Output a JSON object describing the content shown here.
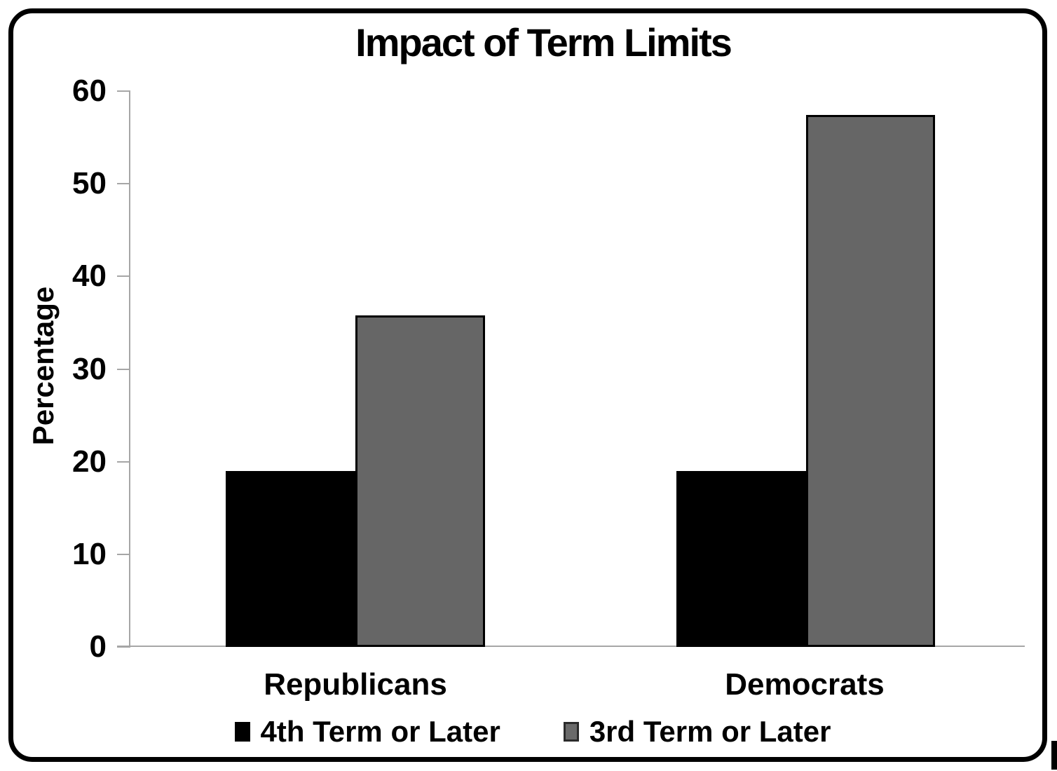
{
  "title": "Impact of Term Limits",
  "chart_data": {
    "type": "bar",
    "title": "Impact of Term Limits",
    "categories": [
      "Republicans",
      "Democrats"
    ],
    "series": [
      {
        "name": "4th Term or Later",
        "color": "#000000",
        "values": [
          19,
          19
        ]
      },
      {
        "name": "3rd Term or Later",
        "color": "#666666",
        "values": [
          35.8,
          57.4
        ]
      }
    ],
    "ylabel": "Percentage",
    "ylim": [
      0,
      60
    ],
    "yticks": [
      0,
      10,
      20,
      30,
      40,
      50,
      60
    ],
    "grid": false,
    "legend_position": "bottom",
    "axis_color": "#a6a6a6",
    "background_color": "#ffffff"
  }
}
